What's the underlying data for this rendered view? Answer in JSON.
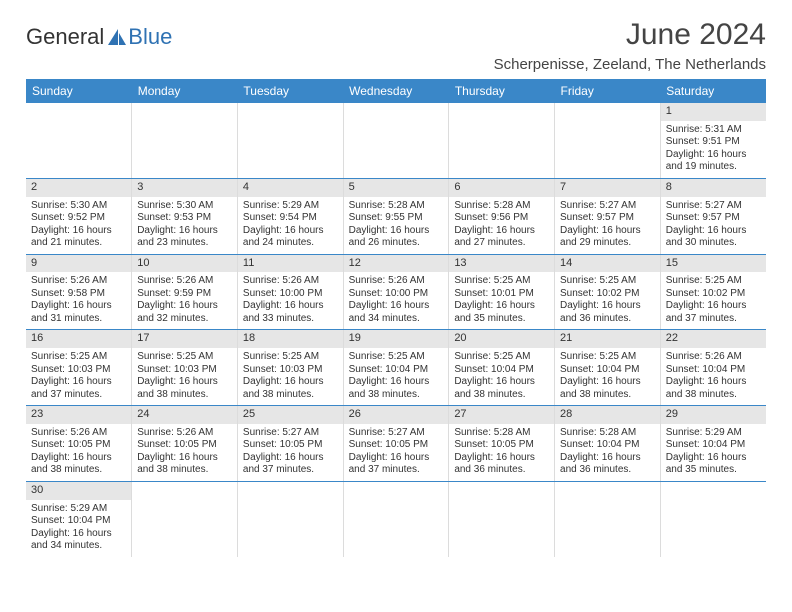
{
  "brand": {
    "part1": "General",
    "part2": "Blue"
  },
  "title": "June 2024",
  "location": "Scherpenisse, Zeeland, The Netherlands",
  "day_headers": [
    "Sunday",
    "Monday",
    "Tuesday",
    "Wednesday",
    "Thursday",
    "Friday",
    "Saturday"
  ],
  "colors": {
    "header_bg": "#3a87c8",
    "header_text": "#ffffff",
    "daynum_bg": "#e6e6e6",
    "row_border": "#3a87c8",
    "cell_border": "#dcdcdc",
    "text": "#333333"
  },
  "weeks": [
    [
      null,
      null,
      null,
      null,
      null,
      null,
      {
        "n": "1",
        "sr": "5:31 AM",
        "ss": "9:51 PM",
        "dh": "16",
        "dm": "19"
      }
    ],
    [
      {
        "n": "2",
        "sr": "5:30 AM",
        "ss": "9:52 PM",
        "dh": "16",
        "dm": "21"
      },
      {
        "n": "3",
        "sr": "5:30 AM",
        "ss": "9:53 PM",
        "dh": "16",
        "dm": "23"
      },
      {
        "n": "4",
        "sr": "5:29 AM",
        "ss": "9:54 PM",
        "dh": "16",
        "dm": "24"
      },
      {
        "n": "5",
        "sr": "5:28 AM",
        "ss": "9:55 PM",
        "dh": "16",
        "dm": "26"
      },
      {
        "n": "6",
        "sr": "5:28 AM",
        "ss": "9:56 PM",
        "dh": "16",
        "dm": "27"
      },
      {
        "n": "7",
        "sr": "5:27 AM",
        "ss": "9:57 PM",
        "dh": "16",
        "dm": "29"
      },
      {
        "n": "8",
        "sr": "5:27 AM",
        "ss": "9:57 PM",
        "dh": "16",
        "dm": "30"
      }
    ],
    [
      {
        "n": "9",
        "sr": "5:26 AM",
        "ss": "9:58 PM",
        "dh": "16",
        "dm": "31"
      },
      {
        "n": "10",
        "sr": "5:26 AM",
        "ss": "9:59 PM",
        "dh": "16",
        "dm": "32"
      },
      {
        "n": "11",
        "sr": "5:26 AM",
        "ss": "10:00 PM",
        "dh": "16",
        "dm": "33"
      },
      {
        "n": "12",
        "sr": "5:26 AM",
        "ss": "10:00 PM",
        "dh": "16",
        "dm": "34"
      },
      {
        "n": "13",
        "sr": "5:25 AM",
        "ss": "10:01 PM",
        "dh": "16",
        "dm": "35"
      },
      {
        "n": "14",
        "sr": "5:25 AM",
        "ss": "10:02 PM",
        "dh": "16",
        "dm": "36"
      },
      {
        "n": "15",
        "sr": "5:25 AM",
        "ss": "10:02 PM",
        "dh": "16",
        "dm": "37"
      }
    ],
    [
      {
        "n": "16",
        "sr": "5:25 AM",
        "ss": "10:03 PM",
        "dh": "16",
        "dm": "37"
      },
      {
        "n": "17",
        "sr": "5:25 AM",
        "ss": "10:03 PM",
        "dh": "16",
        "dm": "38"
      },
      {
        "n": "18",
        "sr": "5:25 AM",
        "ss": "10:03 PM",
        "dh": "16",
        "dm": "38"
      },
      {
        "n": "19",
        "sr": "5:25 AM",
        "ss": "10:04 PM",
        "dh": "16",
        "dm": "38"
      },
      {
        "n": "20",
        "sr": "5:25 AM",
        "ss": "10:04 PM",
        "dh": "16",
        "dm": "38"
      },
      {
        "n": "21",
        "sr": "5:25 AM",
        "ss": "10:04 PM",
        "dh": "16",
        "dm": "38"
      },
      {
        "n": "22",
        "sr": "5:26 AM",
        "ss": "10:04 PM",
        "dh": "16",
        "dm": "38"
      }
    ],
    [
      {
        "n": "23",
        "sr": "5:26 AM",
        "ss": "10:05 PM",
        "dh": "16",
        "dm": "38"
      },
      {
        "n": "24",
        "sr": "5:26 AM",
        "ss": "10:05 PM",
        "dh": "16",
        "dm": "38"
      },
      {
        "n": "25",
        "sr": "5:27 AM",
        "ss": "10:05 PM",
        "dh": "16",
        "dm": "37"
      },
      {
        "n": "26",
        "sr": "5:27 AM",
        "ss": "10:05 PM",
        "dh": "16",
        "dm": "37"
      },
      {
        "n": "27",
        "sr": "5:28 AM",
        "ss": "10:05 PM",
        "dh": "16",
        "dm": "36"
      },
      {
        "n": "28",
        "sr": "5:28 AM",
        "ss": "10:04 PM",
        "dh": "16",
        "dm": "36"
      },
      {
        "n": "29",
        "sr": "5:29 AM",
        "ss": "10:04 PM",
        "dh": "16",
        "dm": "35"
      }
    ],
    [
      {
        "n": "30",
        "sr": "5:29 AM",
        "ss": "10:04 PM",
        "dh": "16",
        "dm": "34"
      },
      null,
      null,
      null,
      null,
      null,
      null
    ]
  ],
  "labels": {
    "sunrise": "Sunrise:",
    "sunset": "Sunset:",
    "daylight_prefix": "Daylight:",
    "hours_word": "hours",
    "and_word": "and",
    "minutes_word": "minutes."
  }
}
